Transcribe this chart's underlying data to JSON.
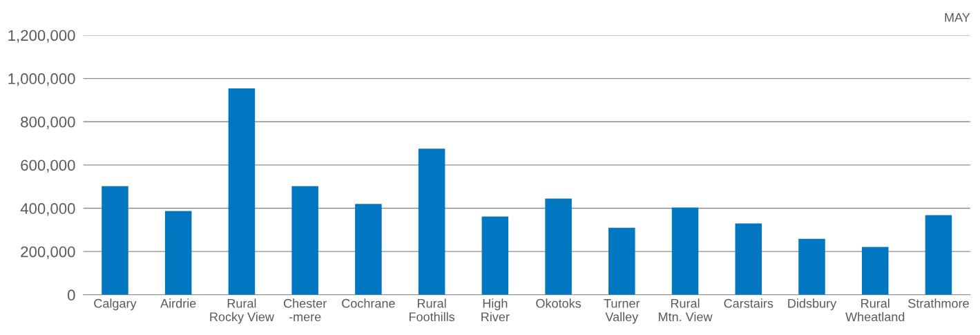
{
  "chart_data": {
    "type": "bar",
    "title": "MAY",
    "categories": [
      "Calgary",
      "Airdrie",
      "Rural\nRocky View",
      "Chester\n-mere",
      "Cochrane",
      "Rural\nFoothills",
      "High\nRiver",
      "Okotoks",
      "Turner\nValley",
      "Rural\nMtn. View",
      "Carstairs",
      "Didsbury",
      "Rural\nWheatland",
      "Strathmore"
    ],
    "values": [
      502000,
      387000,
      954000,
      502000,
      420000,
      675000,
      362000,
      445000,
      310000,
      403000,
      330000,
      259000,
      221000,
      368000
    ],
    "color": "#0077c0",
    "ylim": [
      0,
      1200000
    ],
    "yticks": [
      {
        "value": 0,
        "label": "0"
      },
      {
        "value": 200000,
        "label": "200,000"
      },
      {
        "value": 400000,
        "label": "400,000"
      },
      {
        "value": 600000,
        "label": "600,000"
      },
      {
        "value": 800000,
        "label": "800,000"
      },
      {
        "value": 1000000,
        "label": "1,000,000"
      },
      {
        "value": 1200000,
        "label": "1,200,000"
      }
    ],
    "grid": "y",
    "legend": false
  }
}
